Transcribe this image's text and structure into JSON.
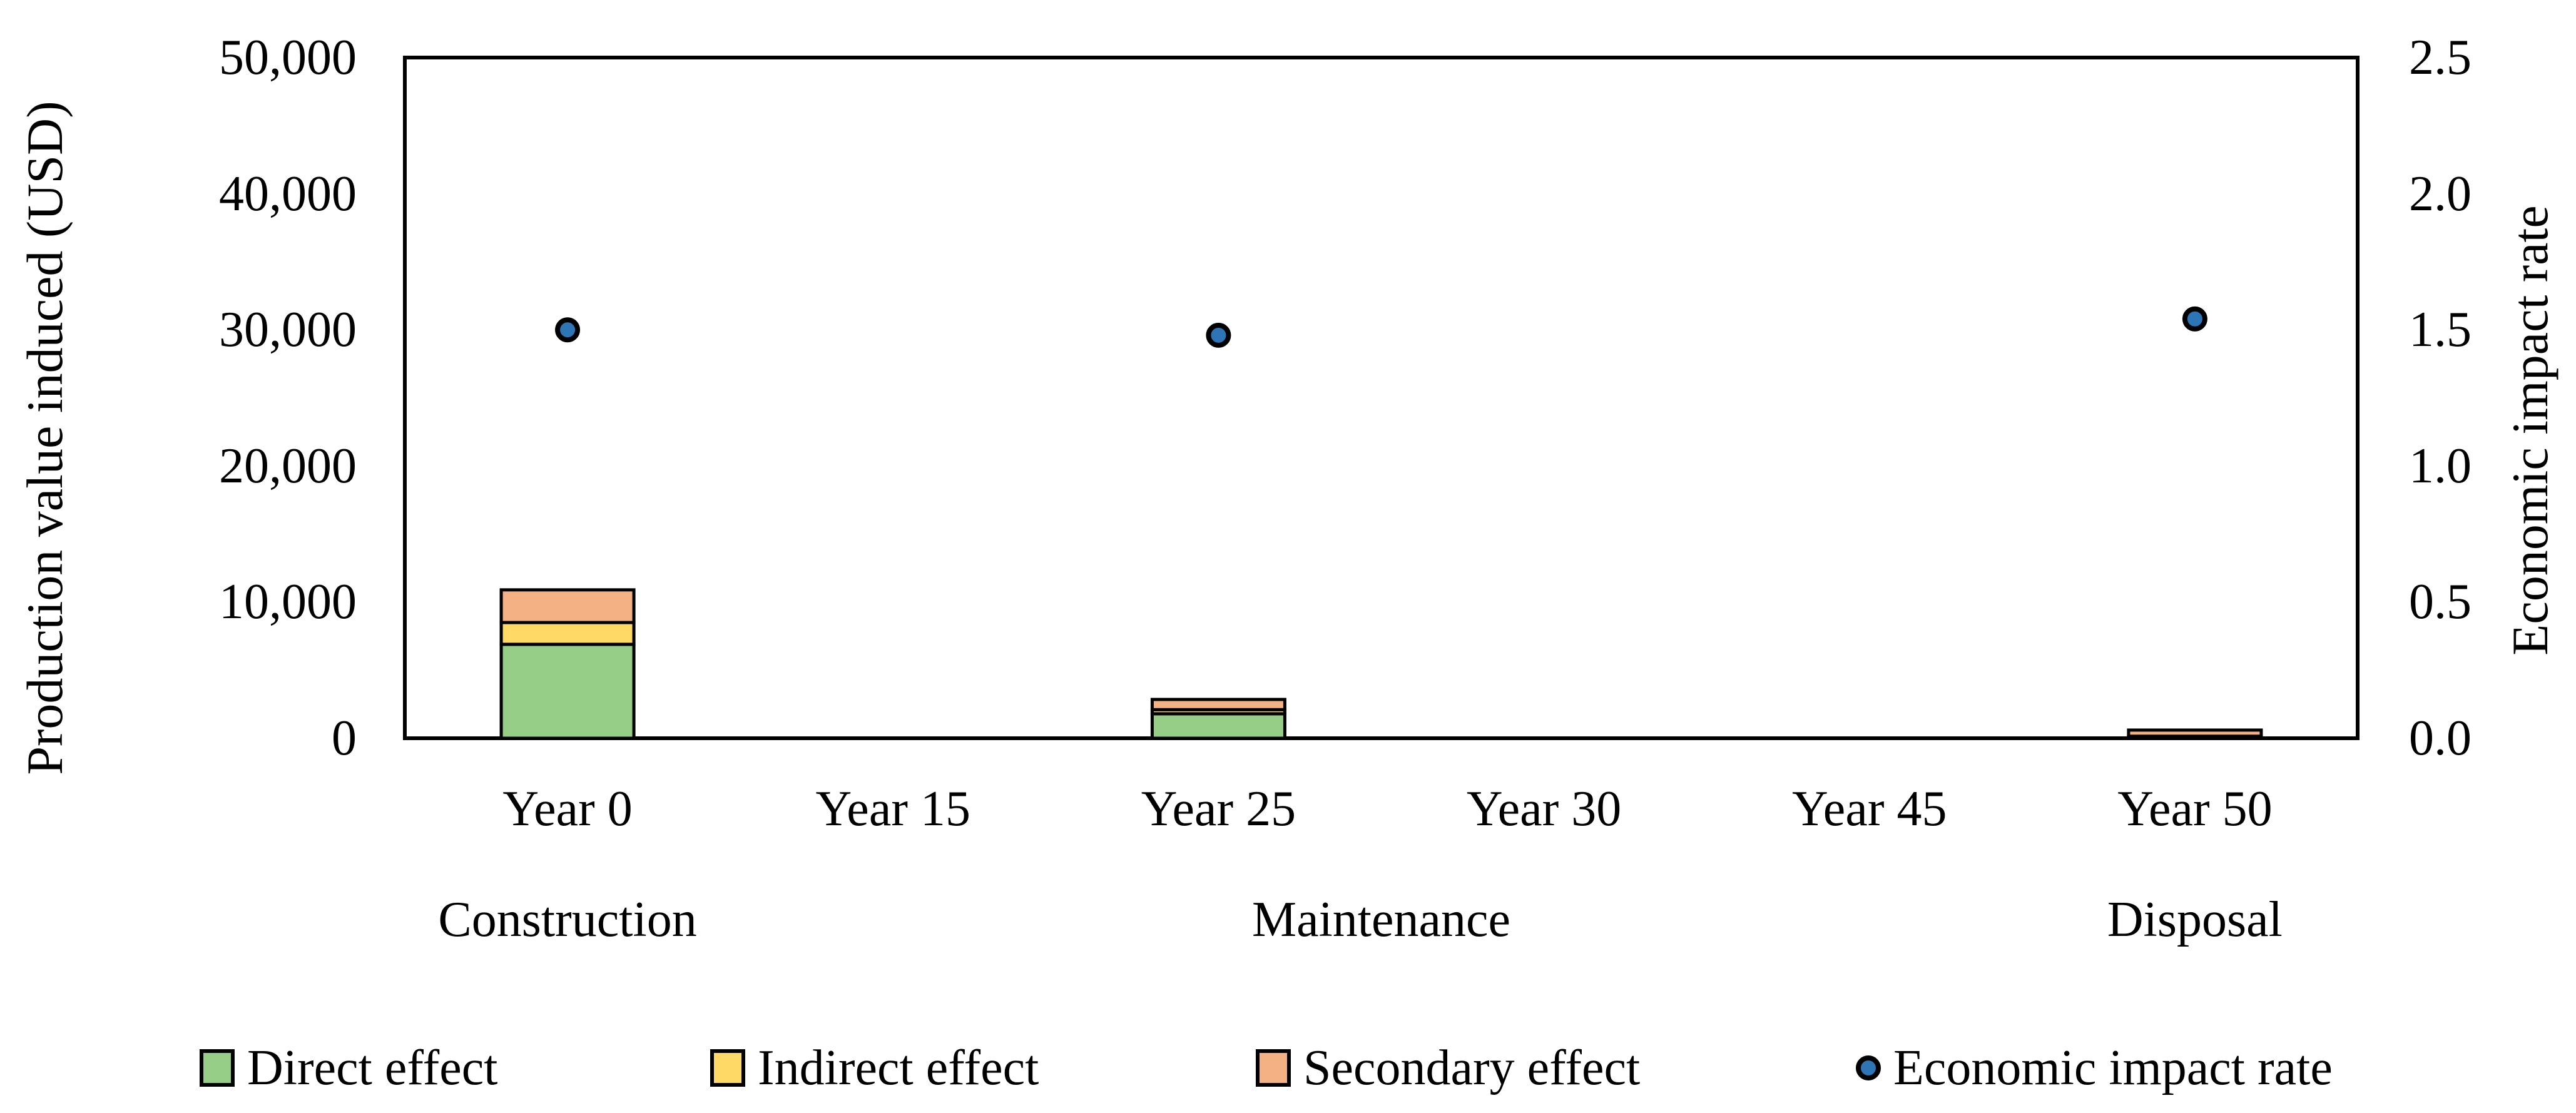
{
  "figure": {
    "background_color": "#ffffff",
    "frame_color": "#000000",
    "left_axis": {
      "title": "Production value induced (USD)",
      "tick_labels": [
        "50,000",
        "40,000",
        "30,000",
        "20,000",
        "10,000",
        "0"
      ],
      "min": 0,
      "max": 50000
    },
    "right_axis": {
      "title": "Economic impact rate",
      "tick_labels": [
        "2.5",
        "2.0",
        "1.5",
        "1.0",
        "0.5",
        "0.0"
      ],
      "min": 0,
      "max": 2.5
    }
  },
  "chart_data": {
    "type": "bar",
    "subtype": "stacked-bars-with-scatter-overlay-dual-axis",
    "title": "",
    "xlabel": "",
    "ylabel": "Production value induced (USD)",
    "ylabel_right": "Economic impact rate",
    "ylim": [
      0,
      50000
    ],
    "ylim_right": [
      0,
      2.5
    ],
    "grid": false,
    "legend_position": "bottom",
    "categories": [
      "Year 0",
      "Year 15",
      "Year 25",
      "Year 30",
      "Year 45",
      "Year 50"
    ],
    "phases": [
      {
        "label": "Construction",
        "from_category": 0,
        "to_category": 0
      },
      {
        "label": "Maintenance",
        "from_category": 1,
        "to_category": 4
      },
      {
        "label": "Disposal",
        "from_category": 5,
        "to_category": 5
      }
    ],
    "series": [
      {
        "name": "Direct effect",
        "type": "bar",
        "axis": "left",
        "color": "#96CD87",
        "values": [
          6900,
          0,
          1800,
          0,
          0,
          100
        ]
      },
      {
        "name": "Indirect effect",
        "type": "bar",
        "axis": "left",
        "color": "#FFD966",
        "values": [
          1600,
          0,
          300,
          0,
          0,
          50
        ]
      },
      {
        "name": "Secondary effect",
        "type": "bar",
        "axis": "left",
        "color": "#F4B183",
        "values": [
          2400,
          0,
          750,
          0,
          0,
          450
        ]
      },
      {
        "name": "Economic impact rate",
        "type": "scatter",
        "axis": "right",
        "color": "#2E75B6",
        "values": [
          1.5,
          null,
          1.48,
          null,
          null,
          1.54
        ]
      }
    ]
  },
  "legend": {
    "items": [
      {
        "label": "Direct effect",
        "marker": "square-swatch",
        "color": "#96CD87"
      },
      {
        "label": "Indirect effect",
        "marker": "square-swatch",
        "color": "#FFD966"
      },
      {
        "label": "Secondary effect",
        "marker": "square-swatch",
        "color": "#F4B183"
      },
      {
        "label": "Economic impact rate",
        "marker": "circle-dot",
        "color": "#2E75B6"
      }
    ]
  }
}
